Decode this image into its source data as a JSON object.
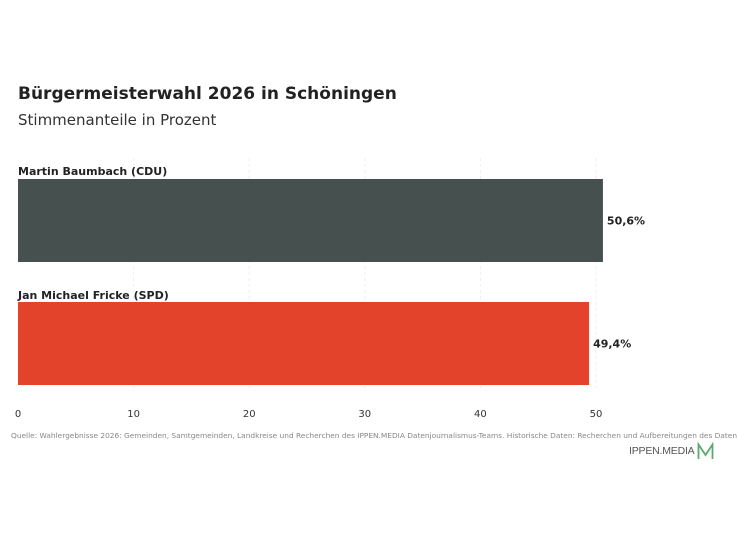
{
  "header": {
    "title": "Bürgermeisterwahl 2026 in Schöningen",
    "subtitle": "Stimmenanteile in Prozent"
  },
  "footer": {
    "source": "Quelle: Wahlergebnisse 2026: Gemeinden, Samtgemeinden, Landkreise und Recherchen des IPPEN.MEDIA Datenjournalismus-Teams. Historische Daten: Recherchen und Aufbereitungen des Daten",
    "brand": "IPPEN.MEDIA",
    "brand_logo_icon": "ippen-m-logo-icon",
    "brand_color": "#5cab6e"
  },
  "chart_data": {
    "type": "bar",
    "orientation": "horizontal",
    "title": "Bürgermeisterwahl 2026 in Schöningen",
    "subtitle": "Stimmenanteile in Prozent",
    "categories": [
      "Martin Baumbach (CDU)",
      "Jan Michael Fricke (SPD)"
    ],
    "values": [
      50.6,
      49.4
    ],
    "value_labels": [
      "50,6%",
      "49,4%"
    ],
    "colors": [
      "#46504f",
      "#e4432b"
    ],
    "xticks": [
      0,
      10,
      20,
      30,
      40,
      50
    ],
    "xlim": [
      0,
      50.6
    ],
    "grid": "vertical",
    "legend": "none"
  }
}
